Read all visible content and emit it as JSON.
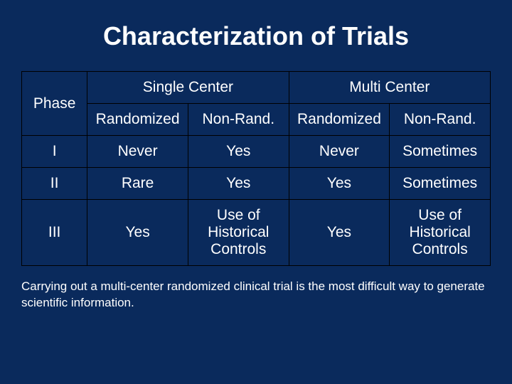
{
  "title": "Characterization of Trials",
  "table": {
    "columns": {
      "phase": "Phase",
      "groups": [
        "Single Center",
        "Multi Center"
      ],
      "subheaders": [
        "Randomized",
        "Non-Rand.",
        "Randomized",
        "Non-Rand."
      ]
    },
    "rows": [
      {
        "phase": "I",
        "cells": [
          "Never",
          "Yes",
          "Never",
          "Sometimes"
        ]
      },
      {
        "phase": "II",
        "cells": [
          "Rare",
          "Yes",
          "Yes",
          "Sometimes"
        ]
      },
      {
        "phase": "III",
        "cells": [
          "Yes",
          "Use of Historical Controls",
          "Yes",
          "Use of Historical Controls"
        ]
      }
    ]
  },
  "footnote": "Carrying out a multi-center randomized clinical trial is the most difficult way to generate scientific information.",
  "style": {
    "background_color": "#0a2a5c",
    "text_color": "#ffffff",
    "border_color": "#000000",
    "title_fontsize": 36,
    "cell_fontsize": 21,
    "footnote_fontsize": 17
  }
}
